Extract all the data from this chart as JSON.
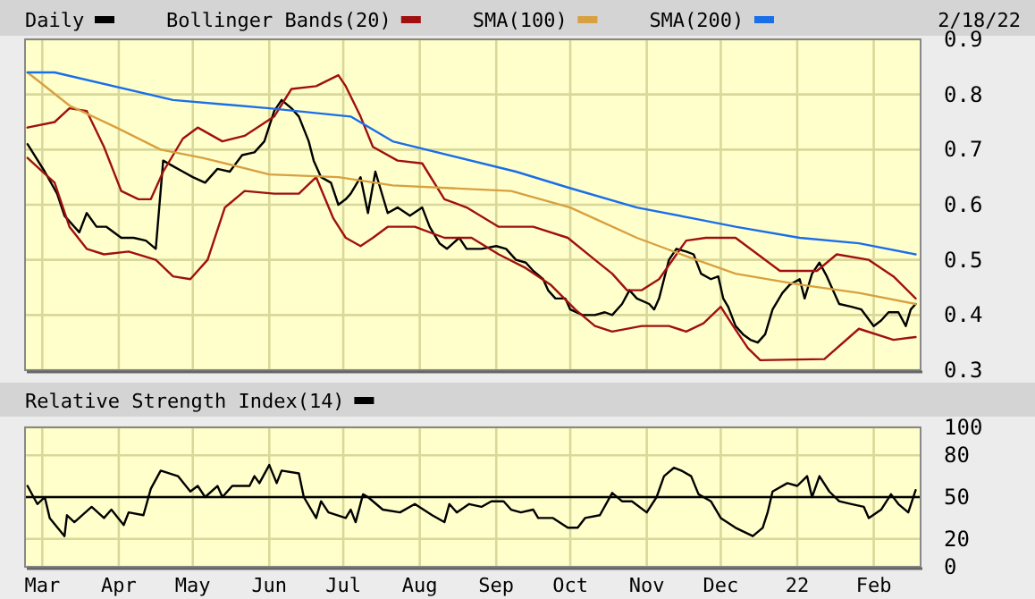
{
  "chart_data": [
    {
      "type": "line",
      "annotations": [
        "2/18/22"
      ],
      "legend": "top",
      "grid": true,
      "tick_labels": "y",
      "xlim": [
        "2021-02-22",
        "2022-02-20"
      ],
      "ylim": [
        0.3,
        0.9
      ],
      "yticks": [
        0.3,
        0.4,
        0.5,
        0.6,
        0.7,
        0.8,
        0.9
      ],
      "xticks": [
        {
          "value": "2021-03-01",
          "label": null
        },
        {
          "value": "2021-04-01",
          "label": null
        },
        {
          "value": "2021-05-01",
          "label": null
        },
        {
          "value": "2021-06-01",
          "label": null
        },
        {
          "value": "2021-07-01",
          "label": null
        },
        {
          "value": "2021-08-01",
          "label": null
        },
        {
          "value": "2021-09-01",
          "label": null
        },
        {
          "value": "2021-10-01",
          "label": null
        },
        {
          "value": "2021-11-01",
          "label": null
        },
        {
          "value": "2021-12-01",
          "label": null
        },
        {
          "value": "2022-01-01",
          "label": null
        },
        {
          "value": "2022-02-01",
          "label": null
        }
      ],
      "series": [
        {
          "name": "Daily",
          "color": "#000000",
          "x": [
            "2021-02-23",
            "2021-03-02",
            "2021-03-07",
            "2021-03-10",
            "2021-03-16",
            "2021-03-19",
            "2021-03-23",
            "2021-03-27",
            "2021-04-02",
            "2021-04-07",
            "2021-04-12",
            "2021-04-16",
            "2021-04-19",
            "2021-04-23",
            "2021-04-27",
            "2021-05-01",
            "2021-05-06",
            "2021-05-11",
            "2021-05-16",
            "2021-05-21",
            "2021-05-26",
            "2021-05-30",
            "2021-06-03",
            "2021-06-06",
            "2021-06-10",
            "2021-06-13",
            "2021-06-17",
            "2021-06-19",
            "2021-06-22",
            "2021-06-26",
            "2021-06-29",
            "2021-07-02",
            "2021-07-04",
            "2021-07-08",
            "2021-07-11",
            "2021-07-14",
            "2021-07-19",
            "2021-07-23",
            "2021-07-28",
            "2021-08-02",
            "2021-08-05",
            "2021-08-09",
            "2021-08-12",
            "2021-08-17",
            "2021-08-20",
            "2021-08-26",
            "2021-09-01",
            "2021-09-05",
            "2021-09-09",
            "2021-09-13",
            "2021-09-16",
            "2021-09-20",
            "2021-09-22",
            "2021-09-25",
            "2021-09-29",
            "2021-10-01",
            "2021-10-06",
            "2021-10-11",
            "2021-10-15",
            "2021-10-18",
            "2021-10-22",
            "2021-10-25",
            "2021-10-28",
            "2021-11-02",
            "2021-11-04",
            "2021-11-06",
            "2021-11-08",
            "2021-11-10",
            "2021-11-13",
            "2021-11-17",
            "2021-11-20",
            "2021-11-23",
            "2021-11-27",
            "2021-11-30",
            "2021-12-02",
            "2021-12-04",
            "2021-12-07",
            "2021-12-10",
            "2021-12-13",
            "2021-12-16",
            "2021-12-19",
            "2021-12-22",
            "2021-12-26",
            "2021-12-29",
            "2022-01-02",
            "2022-01-04",
            "2022-01-07",
            "2022-01-10",
            "2022-01-13",
            "2022-01-16",
            "2022-01-18",
            "2022-01-23",
            "2022-01-27",
            "2022-02-01",
            "2022-02-04",
            "2022-02-07",
            "2022-02-11",
            "2022-02-14",
            "2022-02-16",
            "2022-02-18"
          ],
          "values": [
            0.71,
            0.66,
            0.62,
            0.58,
            0.55,
            0.585,
            0.56,
            0.56,
            0.54,
            0.54,
            0.535,
            0.52,
            0.68,
            0.67,
            0.66,
            0.65,
            0.64,
            0.665,
            0.66,
            0.69,
            0.695,
            0.715,
            0.77,
            0.79,
            0.775,
            0.76,
            0.715,
            0.68,
            0.65,
            0.64,
            0.6,
            0.61,
            0.62,
            0.65,
            0.585,
            0.66,
            0.585,
            0.595,
            0.58,
            0.595,
            0.56,
            0.53,
            0.52,
            0.54,
            0.52,
            0.52,
            0.525,
            0.52,
            0.5,
            0.495,
            0.48,
            0.465,
            0.445,
            0.43,
            0.43,
            0.41,
            0.4,
            0.4,
            0.405,
            0.4,
            0.42,
            0.445,
            0.43,
            0.42,
            0.41,
            0.43,
            0.465,
            0.5,
            0.52,
            0.515,
            0.51,
            0.475,
            0.465,
            0.47,
            0.43,
            0.415,
            0.38,
            0.365,
            0.355,
            0.35,
            0.365,
            0.41,
            0.44,
            0.455,
            0.465,
            0.43,
            0.475,
            0.495,
            0.47,
            0.44,
            0.42,
            0.415,
            0.41,
            0.38,
            0.39,
            0.405,
            0.405,
            0.38,
            0.41,
            0.42
          ]
        },
        {
          "name": "Bollinger Bands(20)",
          "color": "#a01010",
          "x": [
            "2021-02-23",
            "2021-03-06",
            "2021-03-12",
            "2021-03-19",
            "2021-03-26",
            "2021-04-02",
            "2021-04-09",
            "2021-04-14",
            "2021-04-19",
            "2021-04-27",
            "2021-05-03",
            "2021-05-13",
            "2021-05-22",
            "2021-06-03",
            "2021-06-10",
            "2021-06-20",
            "2021-06-29",
            "2021-07-02",
            "2021-07-08",
            "2021-07-13",
            "2021-07-23",
            "2021-08-02",
            "2021-08-11",
            "2021-08-20",
            "2021-09-02",
            "2021-09-16",
            "2021-09-30",
            "2021-10-11",
            "2021-10-18",
            "2021-10-24",
            "2021-10-30",
            "2021-11-06",
            "2021-11-17",
            "2021-11-25",
            "2021-12-07",
            "2021-12-25",
            "2022-01-09",
            "2022-01-17",
            "2022-01-30",
            "2022-02-09",
            "2022-02-18"
          ],
          "values": [
            0.74,
            0.75,
            0.775,
            0.77,
            0.705,
            0.625,
            0.61,
            0.61,
            0.66,
            0.72,
            0.74,
            0.715,
            0.725,
            0.76,
            0.81,
            0.815,
            0.835,
            0.815,
            0.76,
            0.705,
            0.68,
            0.675,
            0.61,
            0.595,
            0.56,
            0.56,
            0.54,
            0.5,
            0.475,
            0.445,
            0.445,
            0.465,
            0.535,
            0.54,
            0.54,
            0.48,
            0.48,
            0.51,
            0.5,
            0.47,
            0.43
          ]
        },
        {
          "color": "#a01010",
          "x": [
            "2021-02-23",
            "2021-03-06",
            "2021-03-12",
            "2021-03-19",
            "2021-03-26",
            "2021-04-05",
            "2021-04-16",
            "2021-04-23",
            "2021-04-30",
            "2021-05-07",
            "2021-05-14",
            "2021-05-22",
            "2021-06-03",
            "2021-06-13",
            "2021-06-20",
            "2021-06-27",
            "2021-07-02",
            "2021-07-08",
            "2021-07-13",
            "2021-07-19",
            "2021-07-30",
            "2021-08-11",
            "2021-08-22",
            "2021-09-02",
            "2021-09-13",
            "2021-09-23",
            "2021-10-03",
            "2021-10-11",
            "2021-10-18",
            "2021-10-30",
            "2021-11-10",
            "2021-11-17",
            "2021-11-24",
            "2021-12-01",
            "2021-12-06",
            "2021-12-12",
            "2021-12-17",
            "2022-01-12",
            "2022-01-26",
            "2022-02-09",
            "2022-02-18"
          ],
          "values": [
            0.685,
            0.64,
            0.56,
            0.52,
            0.51,
            0.515,
            0.5,
            0.47,
            0.465,
            0.5,
            0.595,
            0.625,
            0.62,
            0.62,
            0.65,
            0.575,
            0.54,
            0.525,
            0.54,
            0.56,
            0.56,
            0.54,
            0.54,
            0.51,
            0.485,
            0.455,
            0.41,
            0.38,
            0.37,
            0.38,
            0.38,
            0.37,
            0.385,
            0.415,
            0.38,
            0.34,
            0.318,
            0.32,
            0.375,
            0.355,
            0.36
          ]
        },
        {
          "name": "SMA(100)",
          "color": "#d8a040",
          "x": [
            "2021-02-23",
            "2021-03-12",
            "2021-03-31",
            "2021-04-18",
            "2021-05-05",
            "2021-06-01",
            "2021-06-29",
            "2021-07-21",
            "2021-09-07",
            "2021-10-01",
            "2021-10-28",
            "2021-11-15",
            "2021-12-07",
            "2022-01-02",
            "2022-01-26",
            "2022-02-18"
          ],
          "values": [
            0.84,
            0.78,
            0.74,
            0.7,
            0.685,
            0.655,
            0.65,
            0.635,
            0.625,
            0.595,
            0.54,
            0.51,
            0.475,
            0.455,
            0.44,
            0.42
          ]
        },
        {
          "name": "SMA(200)",
          "color": "#1a6ee8",
          "x": [
            "2021-02-23",
            "2021-03-06",
            "2021-04-23",
            "2021-06-01",
            "2021-07-04",
            "2021-07-21",
            "2021-09-09",
            "2021-10-01",
            "2021-10-28",
            "2021-11-20",
            "2021-12-07",
            "2022-01-02",
            "2022-01-26",
            "2022-02-18"
          ],
          "values": [
            0.84,
            0.84,
            0.79,
            0.775,
            0.76,
            0.715,
            0.66,
            0.63,
            0.595,
            0.575,
            0.56,
            0.54,
            0.53,
            0.51
          ]
        }
      ]
    },
    {
      "type": "line",
      "legend": "top",
      "grid": true,
      "xlim": [
        "2021-02-22",
        "2022-02-20"
      ],
      "ylim": [
        0,
        100
      ],
      "yticks": [
        0,
        20,
        50,
        80,
        100
      ],
      "xticks": [
        {
          "value": "2021-03-01",
          "label": "Mar"
        },
        {
          "value": "2021-04-01",
          "label": "Apr"
        },
        {
          "value": "2021-05-01",
          "label": "May"
        },
        {
          "value": "2021-06-01",
          "label": "Jun"
        },
        {
          "value": "2021-07-01",
          "label": "Jul"
        },
        {
          "value": "2021-08-01",
          "label": "Aug"
        },
        {
          "value": "2021-09-01",
          "label": "Sep"
        },
        {
          "value": "2021-10-01",
          "label": "Oct"
        },
        {
          "value": "2021-11-01",
          "label": "Nov"
        },
        {
          "value": "2021-12-01",
          "label": "Dec"
        },
        {
          "value": "2022-01-01",
          "label": "22"
        },
        {
          "value": "2022-02-01",
          "label": "Feb"
        }
      ],
      "ref_lines": [
        {
          "axis": "y",
          "value": 50,
          "color": "#000000"
        }
      ],
      "series": [
        {
          "name": "Relative Strength Index(14)",
          "color": "#000000",
          "x": [
            "2021-02-23",
            "2021-02-27",
            "2021-03-02",
            "2021-03-04",
            "2021-03-10",
            "2021-03-11",
            "2021-03-14",
            "2021-03-21",
            "2021-03-26",
            "2021-03-29",
            "2021-04-03",
            "2021-04-05",
            "2021-04-11",
            "2021-04-14",
            "2021-04-18",
            "2021-04-25",
            "2021-04-30",
            "2021-05-03",
            "2021-05-06",
            "2021-05-11",
            "2021-05-13",
            "2021-05-17",
            "2021-05-24",
            "2021-05-26",
            "2021-05-28",
            "2021-06-01",
            "2021-06-04",
            "2021-06-06",
            "2021-06-13",
            "2021-06-15",
            "2021-06-20",
            "2021-06-22",
            "2021-06-25",
            "2021-07-02",
            "2021-07-04",
            "2021-07-06",
            "2021-07-09",
            "2021-07-11",
            "2021-07-17",
            "2021-07-24",
            "2021-07-30",
            "2021-08-06",
            "2021-08-11",
            "2021-08-13",
            "2021-08-16",
            "2021-08-21",
            "2021-08-26",
            "2021-08-30",
            "2021-09-04",
            "2021-09-07",
            "2021-09-11",
            "2021-09-16",
            "2021-09-18",
            "2021-09-24",
            "2021-09-30",
            "2021-10-04",
            "2021-10-07",
            "2021-10-13",
            "2021-10-18",
            "2021-10-22",
            "2021-10-26",
            "2021-11-01",
            "2021-11-05",
            "2021-11-08",
            "2021-11-12",
            "2021-11-15",
            "2021-11-19",
            "2021-11-22",
            "2021-11-27",
            "2021-12-01",
            "2021-12-07",
            "2021-12-14",
            "2021-12-18",
            "2021-12-20",
            "2021-12-22",
            "2021-12-28",
            "2022-01-01",
            "2022-01-05",
            "2022-01-07",
            "2022-01-10",
            "2022-01-14",
            "2022-01-18",
            "2022-01-23",
            "2022-01-28",
            "2022-01-30",
            "2022-02-04",
            "2022-02-08",
            "2022-02-11",
            "2022-02-15",
            "2022-02-18"
          ],
          "values": [
            58,
            45,
            50,
            35,
            22,
            37,
            32,
            43,
            35,
            41,
            30,
            39,
            37,
            56,
            69,
            65,
            54,
            58,
            50,
            58,
            50,
            58,
            58,
            65,
            60,
            73,
            60,
            69,
            67,
            50,
            35,
            47,
            39,
            35,
            41,
            32,
            52,
            50,
            41,
            39,
            45,
            37,
            32,
            45,
            39,
            45,
            43,
            47,
            47,
            41,
            39,
            41,
            35,
            35,
            28,
            28,
            35,
            37,
            53,
            47,
            47,
            39,
            50,
            65,
            71,
            69,
            65,
            52,
            47,
            35,
            28,
            22,
            28,
            39,
            54,
            60,
            58,
            65,
            50,
            65,
            54,
            47,
            45,
            43,
            35,
            41,
            52,
            45,
            39,
            55
          ]
        }
      ]
    }
  ]
}
